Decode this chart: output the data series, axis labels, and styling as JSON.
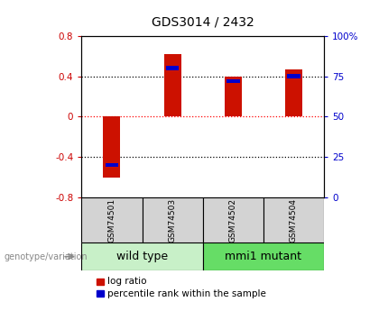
{
  "title": "GDS3014 / 2432",
  "samples": [
    "GSM74501",
    "GSM74503",
    "GSM74502",
    "GSM74504"
  ],
  "log_ratios": [
    -0.6,
    0.62,
    0.4,
    0.47
  ],
  "percentile_ranks": [
    20,
    80,
    72,
    75
  ],
  "groups": [
    {
      "name": "wild type",
      "indices": [
        0,
        1
      ],
      "color": "#c8f0c8"
    },
    {
      "name": "mmi1 mutant",
      "indices": [
        2,
        3
      ],
      "color": "#66dd66"
    }
  ],
  "bar_width": 0.28,
  "blue_bar_width": 0.22,
  "ylim_left": [
    -0.8,
    0.8
  ],
  "ylim_right": [
    0,
    100
  ],
  "yticks_left": [
    -0.8,
    -0.4,
    0.0,
    0.4,
    0.8
  ],
  "ytick_labels_left": [
    "-0.8",
    "-0.4",
    "0",
    "0.4",
    "0.8"
  ],
  "yticks_right": [
    0,
    25,
    50,
    75,
    100
  ],
  "ytick_labels_right": [
    "0",
    "25",
    "50",
    "75",
    "100%"
  ],
  "hlines_dotted": [
    -0.4,
    0.0,
    0.4
  ],
  "hline_zero_color": "red",
  "hline_zero_style": "dotted",
  "hline_other_color": "black",
  "hline_other_style": "dotted",
  "bar_color": "#cc1100",
  "blue_color": "#0000cc",
  "left_tick_color": "#cc0000",
  "right_tick_color": "#0000cc",
  "plot_bg": "#ffffff",
  "sample_bg": "#d3d3d3",
  "legend_labels": [
    "log ratio",
    "percentile rank within the sample"
  ],
  "legend_colors": [
    "#cc1100",
    "#0000cc"
  ],
  "genotype_label": "genotype/variation",
  "sample_fontsize": 6.5,
  "group_fontsize": 9,
  "title_fontsize": 10
}
